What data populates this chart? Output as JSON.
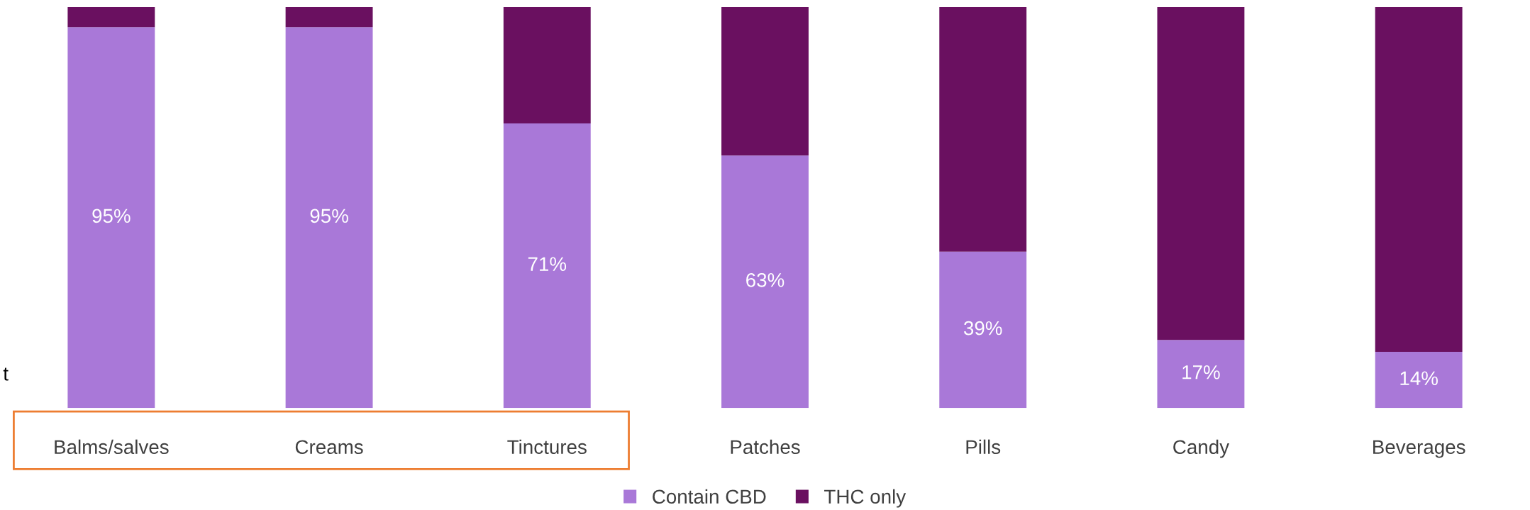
{
  "chart_data": {
    "type": "bar",
    "stacked": true,
    "categories": [
      "Balms/salves",
      "Creams",
      "Tinctures",
      "Patches",
      "Pills",
      "Candy",
      "Beverages"
    ],
    "series": [
      {
        "name": "Contain CBD",
        "color": "#a978d8",
        "values": [
          95,
          95,
          71,
          63,
          39,
          17,
          14
        ],
        "value_labels": [
          "95%",
          "95%",
          "71%",
          "63%",
          "39%",
          "17%",
          "14%"
        ]
      },
      {
        "name": "THC only",
        "color": "#6a1060",
        "values": [
          5,
          5,
          29,
          37,
          61,
          83,
          86
        ]
      }
    ],
    "ylim": [
      0,
      100
    ],
    "tick_labels": "x",
    "legend": "bottom",
    "grid": false,
    "annotations": [
      "t"
    ]
  }
}
